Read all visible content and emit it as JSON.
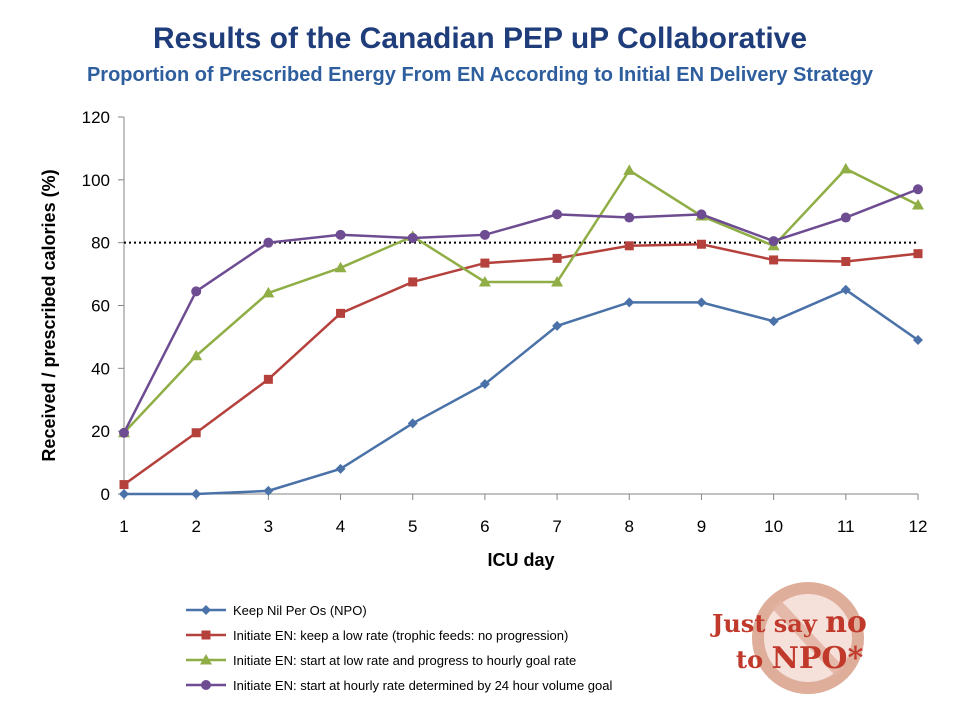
{
  "title": "Results of the Canadian PEP uP Collaborative",
  "subtitle": "Proportion of Prescribed Energy From EN According to Initial EN Delivery Strategy",
  "stamp": {
    "line1_a": "Just say ",
    "line1_b": "no",
    "line2_a": "to ",
    "line2_b": "NPO*"
  },
  "chart_data": {
    "type": "line",
    "xlabel": "ICU day",
    "ylabel": "Received / prescribed calories (%)",
    "x": [
      1,
      2,
      3,
      4,
      5,
      6,
      7,
      8,
      9,
      10,
      11,
      12
    ],
    "ylim": [
      0,
      120
    ],
    "yticks": [
      0,
      20,
      40,
      60,
      80,
      100,
      120
    ],
    "reference_line": {
      "y": 80,
      "style": "dotted"
    },
    "legend_position": "bottom",
    "series": [
      {
        "name": "Keep Nil Per Os (NPO)",
        "color": "#4a72a8",
        "marker": "diamond",
        "values": [
          0,
          0,
          1,
          8,
          22.5,
          35,
          53.5,
          61,
          61,
          55,
          65,
          49
        ]
      },
      {
        "name": "Initiate EN: keep a low rate (trophic feeds: no progression)",
        "color": "#b5413c",
        "marker": "square",
        "values": [
          3,
          19.5,
          36.5,
          57.5,
          67.5,
          73.5,
          75,
          79,
          79.5,
          74.5,
          74,
          76.5
        ]
      },
      {
        "name": "Initiate EN: start at low rate and progress to hourly goal rate",
        "color": "#8fae45",
        "marker": "triangle",
        "values": [
          19.5,
          44,
          64,
          72,
          82,
          67.5,
          67.5,
          103,
          88.5,
          79,
          103.5,
          92
        ]
      },
      {
        "name": "Initiate EN: start at hourly rate determined by 24 hour volume goal",
        "color": "#6e4c92",
        "marker": "circle",
        "values": [
          19.5,
          64.5,
          80,
          82.5,
          81.5,
          82.5,
          89,
          88,
          89,
          80.5,
          88,
          97
        ]
      }
    ]
  }
}
